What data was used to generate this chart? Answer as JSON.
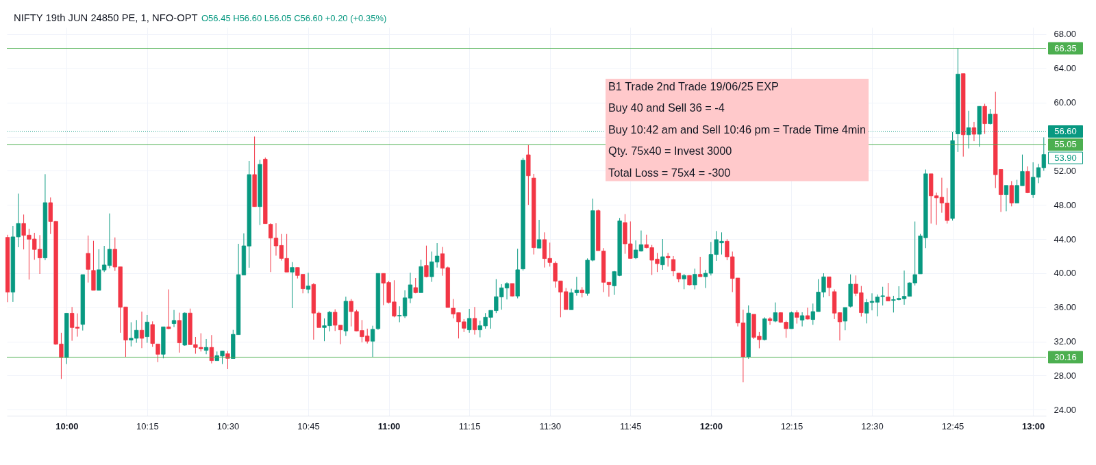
{
  "chart_data": {
    "type": "candlestick",
    "title": "NIFTY 19th JUN 24850 PE, 1, NFO-OPT",
    "subtitle": "O56.45 H56.60 L56.05 C56.60 +0.20 (+0.35%)",
    "x": [
      9.8167,
      9.8333,
      9.85,
      9.8667,
      9.8833,
      9.9,
      9.9167,
      9.9333,
      9.95,
      9.9667,
      9.9833,
      10,
      10.0167,
      10.0333,
      10.05,
      10.0667,
      10.0833,
      10.1,
      10.1167,
      10.1333,
      10.15,
      10.1667,
      10.1833,
      10.2,
      10.2167,
      10.2333,
      10.25,
      10.2667,
      10.2833,
      10.3,
      10.3167,
      10.3333,
      10.35,
      10.3667,
      10.3833,
      10.4,
      10.4167,
      10.4333,
      10.45,
      10.4667,
      10.4833,
      10.5,
      10.5167,
      10.5333,
      10.55,
      10.5667,
      10.5833,
      10.6,
      10.6167,
      10.6333,
      10.65,
      10.6667,
      10.6833,
      10.7,
      10.7167,
      10.7333,
      10.75,
      10.7667,
      10.7833,
      10.8,
      10.8167,
      10.8333,
      10.85,
      10.8667,
      10.8833,
      10.9,
      10.9167,
      10.9333,
      10.95,
      10.9667,
      10.9833,
      11,
      11.0167,
      11.0333,
      11.05,
      11.0667,
      11.0833,
      11.1,
      11.1167,
      11.1333,
      11.15,
      11.1667,
      11.1833,
      11.2,
      11.2167,
      11.2333,
      11.25,
      11.2667,
      11.2833,
      11.3,
      11.3167,
      11.3333,
      11.35,
      11.3667,
      11.3833,
      11.4,
      11.4167,
      11.4333,
      11.45,
      11.4667,
      11.4833,
      11.5,
      11.5167,
      11.5333,
      11.55,
      11.5667,
      11.5833,
      11.6,
      11.6167,
      11.6333,
      11.65,
      11.6667,
      11.6833,
      11.7,
      11.7167,
      11.7333,
      11.75,
      11.7667,
      11.7833,
      11.8,
      11.8167,
      11.8333,
      11.85,
      11.8667,
      11.8833,
      11.9,
      11.9167,
      11.9333,
      11.95,
      11.9667,
      11.9833,
      12,
      12.0167,
      12.0333,
      12.05,
      12.0667,
      12.0833,
      12.1,
      12.1167,
      12.1333,
      12.15,
      12.1667,
      12.1833,
      12.2,
      12.2167,
      12.2333,
      12.25,
      12.2667,
      12.2833,
      12.3,
      12.3167,
      12.3333,
      12.35,
      12.3667,
      12.3833,
      12.4,
      12.4167,
      12.4333,
      12.45,
      12.4667,
      12.4833,
      12.5,
      12.5167,
      12.5333,
      12.55,
      12.5667,
      12.5833,
      12.6,
      12.6167,
      12.6333,
      12.65,
      12.6667,
      12.6833,
      12.7,
      12.7167,
      12.7333,
      12.75,
      12.7667,
      12.7833,
      12.8,
      12.8167,
      12.8333,
      12.85,
      12.8667,
      12.8833,
      12.9,
      12.9167,
      12.9333,
      12.95,
      12.9667,
      12.9833,
      13,
      13.0167,
      13.0333
    ],
    "ohlc": [
      [
        44.19,
        44.5,
        36.6,
        37.78
      ],
      [
        37.78,
        45.53,
        36.63,
        44.25
      ],
      [
        44.25,
        49.33,
        43.04,
        45.82
      ],
      [
        45.82,
        46.87,
        42.78,
        44.43
      ],
      [
        44.46,
        45.21,
        39.25,
        43.98
      ],
      [
        44.0,
        44.73,
        41.57,
        42.78
      ],
      [
        42.8,
        44.46,
        39.91,
        41.79
      ],
      [
        41.79,
        51.6,
        41.52,
        48.26
      ],
      [
        48.26,
        48.87,
        44.59,
        46.06
      ],
      [
        46.06,
        46.1,
        31.6,
        31.68
      ],
      [
        31.7,
        33.02,
        27.61,
        30.1
      ],
      [
        30.1,
        35.3,
        29.35,
        35.3
      ],
      [
        35.3,
        36.04,
        32.08,
        33.63
      ],
      [
        33.68,
        35.29,
        32.56,
        33.55
      ],
      [
        34.0,
        39.83,
        33.28,
        39.83
      ],
      [
        42.32,
        44.41,
        38.9,
        40.45
      ],
      [
        40.32,
        43.79,
        37.99,
        37.99
      ],
      [
        37.99,
        42.8,
        37.99,
        40.4
      ],
      [
        40.37,
        43.2,
        40.13,
        40.96
      ],
      [
        40.9,
        47.0,
        40.58,
        42.8
      ],
      [
        42.8,
        44.19,
        40.26,
        40.72
      ],
      [
        40.74,
        40.74,
        33.02,
        36.01
      ],
      [
        36.04,
        36.04,
        30.16,
        32.16
      ],
      [
        32.16,
        34.25,
        31.41,
        32.37
      ],
      [
        32.37,
        34.51,
        31.84,
        33.31
      ],
      [
        33.31,
        35.5,
        31.22,
        32.37
      ],
      [
        32.56,
        35.1,
        31.84,
        34.27
      ],
      [
        33.98,
        34.35,
        31.36,
        31.76
      ],
      [
        31.7,
        31.7,
        29.57,
        30.5
      ],
      [
        30.5,
        33.71,
        30.02,
        33.71
      ],
      [
        33.71,
        38.1,
        33.45,
        33.5
      ],
      [
        34.09,
        35.69,
        33.68,
        34.46
      ],
      [
        34.46,
        35.37,
        30.69,
        31.84
      ],
      [
        31.57,
        35.4,
        31.5,
        35.32
      ],
      [
        35.32,
        35.85,
        31.6,
        31.63
      ],
      [
        31.63,
        32.53,
        30.56,
        31.3
      ],
      [
        31.3,
        32.96,
        30.82,
        31.14
      ],
      [
        30.96,
        32.29,
        30.5,
        31.3
      ],
      [
        31.3,
        32.75,
        29.43,
        29.75
      ],
      [
        29.75,
        30.82,
        29.75,
        30.34
      ],
      [
        30.29,
        30.9,
        29.35,
        30.88
      ],
      [
        30.56,
        30.88,
        28.76,
        30.02
      ],
      [
        30.0,
        33.36,
        30.0,
        32.83
      ],
      [
        32.8,
        43.44,
        32.8,
        39.83
      ],
      [
        39.78,
        44.67,
        39.78,
        43.2
      ],
      [
        43.18,
        53.15,
        40.64,
        51.55
      ],
      [
        51.55,
        56.01,
        47.8,
        47.8
      ],
      [
        47.8,
        53.28,
        45.64,
        52.75
      ],
      [
        53.36,
        53.55,
        45.8,
        45.8
      ],
      [
        45.72,
        45.85,
        40.13,
        44.11
      ],
      [
        44.11,
        45.85,
        42.05,
        43.2
      ],
      [
        43.25,
        44.59,
        41.47,
        41.73
      ],
      [
        41.73,
        44.59,
        40.13,
        40.13
      ],
      [
        40.13,
        41.3,
        35.9,
        40.66
      ],
      [
        40.66,
        40.66,
        39.38,
        39.73
      ],
      [
        39.86,
        39.86,
        37.64,
        38.18
      ],
      [
        38.12,
        40.05,
        37.64,
        38.5
      ],
      [
        38.68,
        38.84,
        32.21,
        35.32
      ],
      [
        35.32,
        35.5,
        33.63,
        33.63
      ],
      [
        33.63,
        34.7,
        32.03,
        33.84
      ],
      [
        33.84,
        35.58,
        33.18,
        35.42
      ],
      [
        35.42,
        35.77,
        33.23,
        33.9
      ],
      [
        33.9,
        33.9,
        31.68,
        33.36
      ],
      [
        33.23,
        37.24,
        32.64,
        36.71
      ],
      [
        36.71,
        36.97,
        33.76,
        35.5
      ],
      [
        35.5,
        35.7,
        33.2,
        33.23
      ],
      [
        33.28,
        34.51,
        31.89,
        32.56
      ],
      [
        32.64,
        33.5,
        31.76,
        32.03
      ],
      [
        32.03,
        33.84,
        30.16,
        33.42
      ],
      [
        33.5,
        39.97,
        33.36,
        39.97
      ],
      [
        39.97,
        39.97,
        36.25,
        38.84
      ],
      [
        38.9,
        39.11,
        36.44,
        36.57
      ],
      [
        36.63,
        39.17,
        34.83,
        34.97
      ],
      [
        34.99,
        36.12,
        34.25,
        35.05
      ],
      [
        34.99,
        37.99,
        34.75,
        37.11
      ],
      [
        37.08,
        40.05,
        36.49,
        38.63
      ],
      [
        38.31,
        39.43,
        37.64,
        37.72
      ],
      [
        37.72,
        41.57,
        37.72,
        40.77
      ],
      [
        40.9,
        43.23,
        39.51,
        39.59
      ],
      [
        39.59,
        42.53,
        38.98,
        41.33
      ],
      [
        41.3,
        43.52,
        40.66,
        42.0
      ],
      [
        42.27,
        43.07,
        39.7,
        40.58
      ],
      [
        40.64,
        40.77,
        35.98,
        35.98
      ],
      [
        35.9,
        36.97,
        34.7,
        35.21
      ],
      [
        35.37,
        35.37,
        32.35,
        34.3
      ],
      [
        34.3,
        34.62,
        33.1,
        33.55
      ],
      [
        33.36,
        35.82,
        33.02,
        34.7
      ],
      [
        34.7,
        36.04,
        32.8,
        33.36
      ],
      [
        33.36,
        34.43,
        32.48,
        33.84
      ],
      [
        33.82,
        35.32,
        33.5,
        34.83
      ],
      [
        34.83,
        35.64,
        33.5,
        35.64
      ],
      [
        35.61,
        39.3,
        35.32,
        37.24
      ],
      [
        37.21,
        38.71,
        35.72,
        38.28
      ],
      [
        38.26,
        38.93,
        36.92,
        38.79
      ],
      [
        38.79,
        38.79,
        37.24,
        37.32
      ],
      [
        37.32,
        42.86,
        37.05,
        40.4
      ],
      [
        40.5,
        53.5,
        40.3,
        53.23
      ],
      [
        53.87,
        55.05,
        48.0,
        51.41
      ],
      [
        51.14,
        51.63,
        42.19,
        42.99
      ],
      [
        42.94,
        46.25,
        42.94,
        43.93
      ],
      [
        43.93,
        44.78,
        40.66,
        41.71
      ],
      [
        41.73,
        43.58,
        40.77,
        41.25
      ],
      [
        41.17,
        41.39,
        38.31,
        39.06
      ],
      [
        39.09,
        39.09,
        34.83,
        37.78
      ],
      [
        37.83,
        38.26,
        35.74,
        35.74
      ],
      [
        35.72,
        38.18,
        35.72,
        37.7
      ],
      [
        37.7,
        39.57,
        37.37,
        38.02
      ],
      [
        38.02,
        38.36,
        37.16,
        37.7
      ],
      [
        37.64,
        41.73,
        37.37,
        41.52
      ],
      [
        41.52,
        48.74,
        41.39,
        47.32
      ],
      [
        47.32,
        47.45,
        42.64,
        42.64
      ],
      [
        42.59,
        42.94,
        37.78,
        38.93
      ],
      [
        38.93,
        38.93,
        37.24,
        38.66
      ],
      [
        38.52,
        40.26,
        37.45,
        40.18
      ],
      [
        39.73,
        46.47,
        39.65,
        46.12
      ],
      [
        45.93,
        46.92,
        42.27,
        43.44
      ],
      [
        43.44,
        46.06,
        41.73,
        41.73
      ],
      [
        41.79,
        43.84,
        41.65,
        42.72
      ],
      [
        42.59,
        45.0,
        42.53,
        43.34
      ],
      [
        43.34,
        44.51,
        42.91,
        42.99
      ],
      [
        42.99,
        43.31,
        39.78,
        41.52
      ],
      [
        41.65,
        42.37,
        40.13,
        41.12
      ],
      [
        40.98,
        44.0,
        40.4,
        41.92
      ],
      [
        41.97,
        42.37,
        40.77,
        41.79
      ],
      [
        41.6,
        42.0,
        39.65,
        40.26
      ],
      [
        40.0,
        40.0,
        38.93,
        39.33
      ],
      [
        39.33,
        39.91,
        38.12,
        39.73
      ],
      [
        39.73,
        39.73,
        38.58,
        38.63
      ],
      [
        38.63,
        40.53,
        38.1,
        39.86
      ],
      [
        39.86,
        41.92,
        39.59,
        39.59
      ],
      [
        39.59,
        40.4,
        38.26,
        39.99
      ],
      [
        39.99,
        43.66,
        39.73,
        42.19
      ],
      [
        42.19,
        44.94,
        41.44,
        43.93
      ],
      [
        43.55,
        44.78,
        42.19,
        43.74
      ],
      [
        43.74,
        43.98,
        41.52,
        41.92
      ],
      [
        41.92,
        42.53,
        37.78,
        39.38
      ],
      [
        39.43,
        39.43,
        33.76,
        34.17
      ],
      [
        34.17,
        35.72,
        27.21,
        30.16
      ],
      [
        30.16,
        36.22,
        29.97,
        35.32
      ],
      [
        35.18,
        35.18,
        32.29,
        32.48
      ],
      [
        32.61,
        33.1,
        31.2,
        32.21
      ],
      [
        32.21,
        34.83,
        32.11,
        34.65
      ],
      [
        34.65,
        34.83,
        33.95,
        34.43
      ],
      [
        34.38,
        36.57,
        34.25,
        35.37
      ],
      [
        35.37,
        35.42,
        34.19,
        34.25
      ],
      [
        34.25,
        34.43,
        32.43,
        33.5
      ],
      [
        33.5,
        35.5,
        33.5,
        35.37
      ],
      [
        35.37,
        35.64,
        34.09,
        34.83
      ],
      [
        34.51,
        35.42,
        33.76,
        35.02
      ],
      [
        35.02,
        35.96,
        34.57,
        34.62
      ],
      [
        34.57,
        36.44,
        33.95,
        35.5
      ],
      [
        35.5,
        39.3,
        35.5,
        37.78
      ],
      [
        37.78,
        39.99,
        37.16,
        39.57
      ],
      [
        39.57,
        39.57,
        37.32,
        38.31
      ],
      [
        37.83,
        38.1,
        34.62,
        35.32
      ],
      [
        35.37,
        35.42,
        32.11,
        34.3
      ],
      [
        34.38,
        35.98,
        33.31,
        35.98
      ],
      [
        36.12,
        39.86,
        35.98,
        38.71
      ],
      [
        38.71,
        39.73,
        37.32,
        37.64
      ],
      [
        37.7,
        38.5,
        34.91,
        35.37
      ],
      [
        35.32,
        36.97,
        34.11,
        36.57
      ],
      [
        36.57,
        37.64,
        35.64,
        36.71
      ],
      [
        36.6,
        37.5,
        34.94,
        37.2
      ],
      [
        37.26,
        38.41,
        36.21,
        37.35
      ],
      [
        37.2,
        38.86,
        36.75,
        36.75
      ],
      [
        36.81,
        37.35,
        35.39,
        36.9
      ],
      [
        36.9,
        38.47,
        36.81,
        37.05
      ],
      [
        37.0,
        40.31,
        36.3,
        37.29
      ],
      [
        37.29,
        38.92,
        37.29,
        38.86
      ],
      [
        38.86,
        46.05,
        38.56,
        39.83
      ],
      [
        39.92,
        44.6,
        39.92,
        44.36
      ],
      [
        44.15,
        52.15,
        42.94,
        51.64
      ],
      [
        51.64,
        51.64,
        45.81,
        49.07
      ],
      [
        49.07,
        49.43,
        45.66,
        48.83
      ],
      [
        48.89,
        51.18,
        47.08,
        48.22
      ],
      [
        48.22,
        49.97,
        45.81,
        46.17
      ],
      [
        46.41,
        56.53,
        46.17,
        55.53
      ],
      [
        56.32,
        66.35,
        54.2,
        63.32
      ],
      [
        63.38,
        63.38,
        53.66,
        56.22
      ],
      [
        56.22,
        59.03,
        54.62,
        57.04
      ],
      [
        57.04,
        57.73,
        55.47,
        56.28
      ],
      [
        56.28,
        59.55,
        54.81,
        59.55
      ],
      [
        59.55,
        59.85,
        56.32,
        57.52
      ],
      [
        57.52,
        59.24,
        57.43,
        58.64
      ],
      [
        58.64,
        61.27,
        49.97,
        51.54
      ],
      [
        52.15,
        52.15,
        47.17,
        49.19
      ],
      [
        49.19,
        50.28,
        47.26,
        50.28
      ],
      [
        50.28,
        50.79,
        47.83,
        48.22
      ],
      [
        48.22,
        50.94,
        48.22,
        50.28
      ],
      [
        50.25,
        53.9,
        50.25,
        51.91
      ],
      [
        51.91,
        52.51,
        49.37,
        49.43
      ],
      [
        49.19,
        52.99,
        48.83,
        51.24
      ],
      [
        51.24,
        52.81,
        50.55,
        52.36
      ],
      [
        52.36,
        55.92,
        52.0,
        53.9
      ]
    ],
    "colors": [
      "#f23645",
      "#089981",
      "#089981",
      "#f23645",
      "#f23645",
      "#f23645",
      "#f23645",
      "#089981",
      "#f23645",
      "#f23645",
      "#f23645",
      "#089981",
      "#f23645",
      "#f23645",
      "#089981",
      "#f23645",
      "#f23645",
      "#089981",
      "#089981",
      "#089981",
      "#f23645",
      "#f23645",
      "#f23645",
      "#089981",
      "#089981",
      "#f23645",
      "#089981",
      "#f23645",
      "#f23645",
      "#089981",
      "#f23645",
      "#089981",
      "#f23645",
      "#089981",
      "#f23645",
      "#f23645",
      "#f23645",
      "#089981",
      "#f23645",
      "#089981",
      "#089981",
      "#f23645",
      "#089981",
      "#089981",
      "#089981",
      "#089981",
      "#f23645",
      "#089981",
      "#f23645",
      "#f23645",
      "#f23645",
      "#f23645",
      "#f23645",
      "#089981",
      "#f23645",
      "#f23645",
      "#089981",
      "#f23645",
      "#f23645",
      "#089981",
      "#089981",
      "#f23645",
      "#f23645",
      "#089981",
      "#f23645",
      "#f23645",
      "#f23645",
      "#f23645",
      "#089981",
      "#089981",
      "#f23645",
      "#f23645",
      "#f23645",
      "#089981",
      "#089981",
      "#089981",
      "#f23645",
      "#089981",
      "#f23645",
      "#089981",
      "#089981",
      "#f23645",
      "#f23645",
      "#f23645",
      "#f23645",
      "#f23645",
      "#089981",
      "#f23645",
      "#089981",
      "#089981",
      "#089981",
      "#089981",
      "#089981",
      "#089981",
      "#f23645",
      "#089981",
      "#089981",
      "#f23645",
      "#f23645",
      "#089981",
      "#f23645",
      "#f23645",
      "#f23645",
      "#f23645",
      "#f23645",
      "#089981",
      "#089981",
      "#f23645",
      "#089981",
      "#089981",
      "#f23645",
      "#f23645",
      "#f23645",
      "#089981",
      "#089981",
      "#f23645",
      "#f23645",
      "#089981",
      "#089981",
      "#f23645",
      "#f23645",
      "#f23645",
      "#089981",
      "#f23645",
      "#f23645",
      "#f23645",
      "#089981",
      "#f23645",
      "#089981",
      "#f23645",
      "#089981",
      "#089981",
      "#089981",
      "#089981",
      "#f23645",
      "#f23645",
      "#f23645",
      "#f23645",
      "#089981",
      "#f23645",
      "#f23645",
      "#089981",
      "#f23645",
      "#089981",
      "#f23645",
      "#f23645",
      "#089981",
      "#f23645",
      "#089981",
      "#f23645",
      "#089981",
      "#089981",
      "#089981",
      "#f23645",
      "#f23645",
      "#f23645",
      "#089981",
      "#089981",
      "#f23645",
      "#f23645",
      "#089981",
      "#089981",
      "#089981",
      "#089981",
      "#f23645",
      "#089981",
      "#089981",
      "#089981",
      "#089981",
      "#089981",
      "#089981",
      "#089981",
      "#f23645",
      "#f23645",
      "#f23645",
      "#f23645",
      "#089981",
      "#089981",
      "#f23645",
      "#089981",
      "#f23645",
      "#089981",
      "#f23645",
      "#089981",
      "#f23645",
      "#f23645",
      "#089981",
      "#f23645",
      "#089981",
      "#089981",
      "#f23645",
      "#089981",
      "#089981",
      "#089981"
    ],
    "xlim": [
      9.8144,
      13.0401
    ],
    "xticks": [
      {
        "value": 10,
        "label": "10:00"
      },
      {
        "value": 10.25,
        "label": "10:15"
      },
      {
        "value": 10.5,
        "label": "10:30"
      },
      {
        "value": 10.75,
        "label": "10:45"
      },
      {
        "value": 11,
        "label": "11:00"
      },
      {
        "value": 11.25,
        "label": "11:15"
      },
      {
        "value": 11.5,
        "label": "11:30"
      },
      {
        "value": 11.75,
        "label": "11:45"
      },
      {
        "value": 12,
        "label": "12:00"
      },
      {
        "value": 12.25,
        "label": "12:15"
      },
      {
        "value": 12.5,
        "label": "12:30"
      },
      {
        "value": 12.75,
        "label": "12:45"
      },
      {
        "value": 13,
        "label": "13:00"
      }
    ],
    "ylim": [
      23.3,
      68.8
    ],
    "yticks": [
      {
        "value": 24,
        "label": "24.00"
      },
      {
        "value": 28,
        "label": "28.00"
      },
      {
        "value": 32,
        "label": "32.00"
      },
      {
        "value": 36,
        "label": "36.00"
      },
      {
        "value": 40,
        "label": "40.00"
      },
      {
        "value": 44,
        "label": "44.00"
      },
      {
        "value": 48,
        "label": "48.00"
      },
      {
        "value": 52,
        "label": "52.00"
      },
      {
        "value": 56,
        "label": null
      },
      {
        "value": 60,
        "label": "60.00"
      },
      {
        "value": 64,
        "label": "64.00"
      },
      {
        "value": 68,
        "label": "68.00"
      }
    ],
    "grid": true,
    "ref_lines": [
      {
        "axis": "y",
        "value": 66.35,
        "label": "66.35",
        "color": "#4caf50",
        "line_style": "solid"
      },
      {
        "axis": "y",
        "value": 56.6,
        "label": "56.60",
        "color": "#089981",
        "line_style": "dotted"
      },
      {
        "axis": "y",
        "value": 55.05,
        "label": "55.05",
        "color": "#4caf50",
        "line_style": "solid"
      },
      {
        "axis": "y",
        "value": 30.16,
        "label": "30.16",
        "color": "#4caf50",
        "line_style": "solid"
      }
    ],
    "annotations": [
      "B1 Trade  2nd Trade 19/06/25 EXP",
      "Buy 40 and Sell 36 =  -4",
      "Buy 10:42 am and Sell 10:46 pm = Trade Time 4min",
      "Qty. 75x40 = Invest  3000",
      "Total Loss = 75x4 = -300",
      "53.90"
    ]
  }
}
